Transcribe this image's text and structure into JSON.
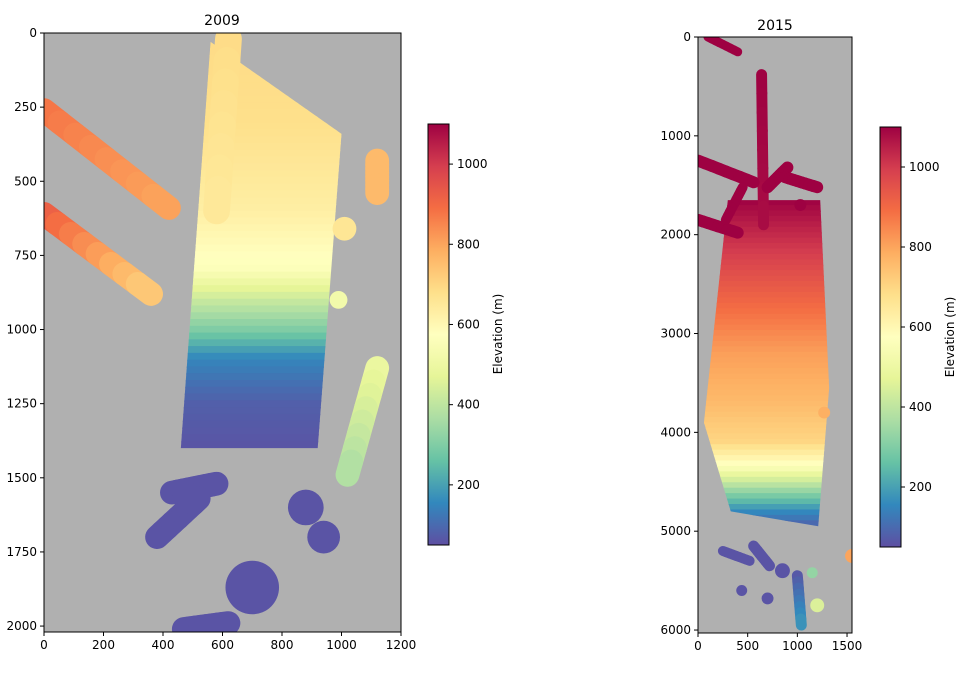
{
  "chart_data": [
    {
      "type": "heatmap",
      "title": "2009",
      "xlabel": "",
      "ylabel": "",
      "xlim": [
        0,
        1200
      ],
      "ylim": [
        2020,
        0
      ],
      "x_ticks": [
        "0",
        "200",
        "400",
        "600",
        "800",
        "1000",
        "1200"
      ],
      "y_ticks": [
        "0",
        "250",
        "500",
        "750",
        "1000",
        "1250",
        "1500",
        "1750",
        "2000"
      ],
      "colormap": "Spectral_r",
      "nodata_color": "#b0b0b0",
      "value_range": [
        50,
        1100
      ],
      "colorbar": {
        "label": "Elevation (m)",
        "ticks": [
          "200",
          "400",
          "600",
          "800",
          "1000"
        ]
      },
      "swaths": [
        {
          "from": [
            0,
            260
          ],
          "to": [
            420,
            590
          ],
          "width": 80,
          "value_start": 880,
          "value_end": 800
        },
        {
          "from": [
            0,
            610
          ],
          "to": [
            360,
            880
          ],
          "width": 80,
          "value_start": 930,
          "value_end": 720
        },
        {
          "from": [
            620,
            20
          ],
          "to": [
            580,
            600
          ],
          "width": 90,
          "value_start": 690,
          "value_end": 650
        },
        {
          "from": [
            1120,
            1130
          ],
          "to": [
            1020,
            1490
          ],
          "width": 80,
          "value_start": 500,
          "value_end": 370
        },
        {
          "from": [
            430,
            1550
          ],
          "to": [
            580,
            1520
          ],
          "width": 80,
          "value_start": 60,
          "value_end": 60
        },
        {
          "from": [
            380,
            1700
          ],
          "to": [
            520,
            1570
          ],
          "width": 80,
          "value_start": 60,
          "value_end": 60
        },
        {
          "from": [
            470,
            2010
          ],
          "to": [
            620,
            1990
          ],
          "width": 80,
          "value_start": 60,
          "value_end": 60
        },
        {
          "from": [
            1120,
            430
          ],
          "to": [
            1120,
            540
          ],
          "width": 80,
          "value_start": 760,
          "value_end": 760
        }
      ],
      "blobs": [
        {
          "x": 880,
          "y": 1600,
          "r": 60,
          "value": 60
        },
        {
          "x": 940,
          "y": 1700,
          "r": 55,
          "value": 60
        },
        {
          "x": 700,
          "y": 1870,
          "r": 90,
          "value": 60
        },
        {
          "x": 1010,
          "y": 660,
          "r": 40,
          "value": 660
        },
        {
          "x": 990,
          "y": 900,
          "r": 30,
          "value": 520
        }
      ],
      "main_strip": {
        "corners": [
          [
            560,
            30
          ],
          [
            1000,
            340
          ],
          [
            920,
            1400
          ],
          [
            460,
            1400
          ]
        ],
        "profile": [
          [
            0,
            690
          ],
          [
            300,
            680
          ],
          [
            600,
            630
          ],
          [
            800,
            560
          ],
          [
            900,
            420
          ],
          [
            1000,
            300
          ],
          [
            1100,
            150
          ],
          [
            1250,
            80
          ],
          [
            1400,
            60
          ],
          [
            2020,
            60
          ]
        ]
      }
    },
    {
      "type": "heatmap",
      "title": "2015",
      "xlabel": "",
      "ylabel": "",
      "xlim": [
        0,
        1550
      ],
      "ylim": [
        6030,
        0
      ],
      "x_ticks": [
        "0",
        "500",
        "1000",
        "1500"
      ],
      "y_ticks": [
        "0",
        "1000",
        "2000",
        "3000",
        "4000",
        "5000",
        "6000"
      ],
      "colormap": "Spectral_r",
      "nodata_color": "#b0b0b0",
      "value_range": [
        50,
        1100
      ],
      "colorbar": {
        "label": "Elevation (m)",
        "ticks": [
          "200",
          "400",
          "600",
          "800",
          "1000"
        ]
      },
      "swaths": [
        {
          "from": [
            100,
            0
          ],
          "to": [
            400,
            150
          ],
          "width": 90,
          "value_start": 1100,
          "value_end": 1100
        },
        {
          "from": [
            640,
            380
          ],
          "to": [
            660,
            1900
          ],
          "width": 110,
          "value_start": 1100,
          "value_end": 1080
        },
        {
          "from": [
            0,
            1250
          ],
          "to": [
            560,
            1470
          ],
          "width": 120,
          "value_start": 1100,
          "value_end": 1100
        },
        {
          "from": [
            900,
            1320
          ],
          "to": [
            700,
            1520
          ],
          "width": 120,
          "value_start": 1100,
          "value_end": 1100
        },
        {
          "from": [
            880,
            1420
          ],
          "to": [
            1200,
            1520
          ],
          "width": 120,
          "value_start": 1100,
          "value_end": 1100
        },
        {
          "from": [
            0,
            1850
          ],
          "to": [
            400,
            1980
          ],
          "width": 120,
          "value_start": 1100,
          "value_end": 1100
        },
        {
          "from": [
            450,
            1520
          ],
          "to": [
            280,
            1850
          ],
          "width": 100,
          "value_start": 1100,
          "value_end": 1100
        },
        {
          "from": [
            560,
            5150
          ],
          "to": [
            720,
            5350
          ],
          "width": 110,
          "value_start": 60,
          "value_end": 60
        },
        {
          "from": [
            250,
            5200
          ],
          "to": [
            520,
            5300
          ],
          "width": 100,
          "value_start": 60,
          "value_end": 60
        },
        {
          "from": [
            1000,
            5450
          ],
          "to": [
            1040,
            5950
          ],
          "width": 110,
          "value_start": 60,
          "value_end": 180
        }
      ],
      "blobs": [
        {
          "x": 1200,
          "y": 5750,
          "r": 70,
          "value": 450
        },
        {
          "x": 1550,
          "y": 5250,
          "r": 70,
          "value": 800
        },
        {
          "x": 700,
          "y": 5680,
          "r": 60,
          "value": 60
        },
        {
          "x": 440,
          "y": 5600,
          "r": 55,
          "value": 60
        },
        {
          "x": 1150,
          "y": 5420,
          "r": 55,
          "value": 330
        },
        {
          "x": 850,
          "y": 5400,
          "r": 75,
          "value": 60
        },
        {
          "x": 1270,
          "y": 3800,
          "r": 60,
          "value": 780
        },
        {
          "x": 1030,
          "y": 1700,
          "r": 60,
          "value": 1100
        }
      ],
      "main_strip": {
        "corners": [
          [
            300,
            1650
          ],
          [
            1230,
            1650
          ],
          [
            1320,
            3550
          ],
          [
            1210,
            4950
          ],
          [
            330,
            4800
          ],
          [
            60,
            3900
          ]
        ],
        "profile": [
          [
            1650,
            1100
          ],
          [
            2000,
            1030
          ],
          [
            2600,
            920
          ],
          [
            3200,
            810
          ],
          [
            3700,
            760
          ],
          [
            4100,
            700
          ],
          [
            4350,
            560
          ],
          [
            4600,
            330
          ],
          [
            4800,
            160
          ],
          [
            5000,
            60
          ],
          [
            6030,
            60
          ]
        ]
      }
    }
  ]
}
